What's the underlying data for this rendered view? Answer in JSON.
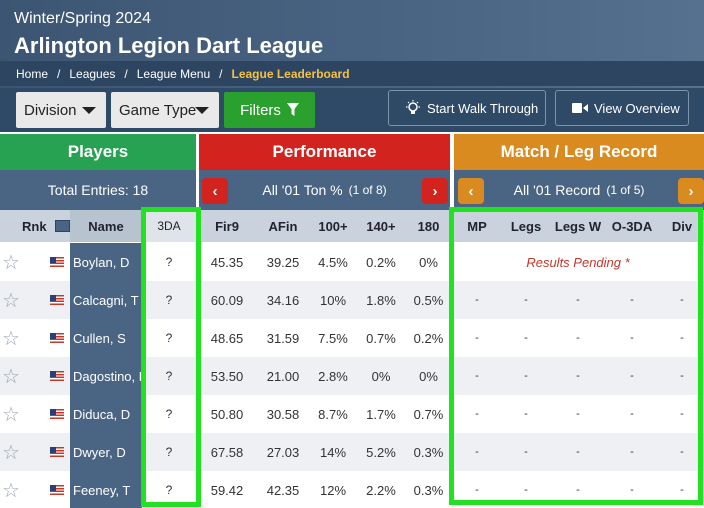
{
  "header": {
    "season": "Winter/Spring 2024",
    "league_name": "Arlington Legion Dart League",
    "breadcrumb": [
      "Home",
      "Leagues",
      "League Menu",
      "League Leaderboard"
    ]
  },
  "toolbar": {
    "division_label": "Division",
    "game_type_label": "Game Type",
    "filters_label": "Filters",
    "walkthrough_label": "Start Walk Through",
    "overview_label": "View Overview"
  },
  "sections": {
    "players": {
      "title": "Players",
      "total_entries": "Total Entries: 18"
    },
    "performance": {
      "title": "Performance",
      "selector": "All '01 Ton %",
      "selector_count": "(1 of 8)"
    },
    "record": {
      "title": "Match / Leg Record",
      "selector": "All '01 Record",
      "selector_count": "(1 of 5)"
    }
  },
  "columns": {
    "rank": "Rnk",
    "name": "Name",
    "three_da": "3DA",
    "fir9": "Fir9",
    "afin": "AFin",
    "c100": "100+",
    "c140": "140+",
    "c180": "180",
    "mp": "MP",
    "legs": "Legs",
    "legs_w": "Legs W",
    "o3da": "O-3DA",
    "div": "Div"
  },
  "results_pending": "Results Pending *",
  "players": [
    {
      "name": "Boylan, D",
      "three_da": "?",
      "fir9": "45.35",
      "afin": "39.25",
      "c100": "4.5%",
      "c140": "0.2%",
      "c180": "0%",
      "mp": "",
      "legs": "",
      "legs_w": "",
      "o3da": "",
      "div": ""
    },
    {
      "name": "Calcagni, T",
      "three_da": "?",
      "fir9": "60.09",
      "afin": "34.16",
      "c100": "10%",
      "c140": "1.8%",
      "c180": "0.5%",
      "mp": "-",
      "legs": "-",
      "legs_w": "-",
      "o3da": "-",
      "div": "-"
    },
    {
      "name": "Cullen, S",
      "three_da": "?",
      "fir9": "48.65",
      "afin": "31.59",
      "c100": "7.5%",
      "c140": "0.7%",
      "c180": "0.2%",
      "mp": "-",
      "legs": "-",
      "legs_w": "-",
      "o3da": "-",
      "div": "-"
    },
    {
      "name": "Dagostino, B",
      "three_da": "?",
      "fir9": "53.50",
      "afin": "21.00",
      "c100": "2.8%",
      "c140": "0%",
      "c180": "0%",
      "mp": "-",
      "legs": "-",
      "legs_w": "-",
      "o3da": "-",
      "div": "-"
    },
    {
      "name": "Diduca, D",
      "three_da": "?",
      "fir9": "50.80",
      "afin": "30.58",
      "c100": "8.7%",
      "c140": "1.7%",
      "c180": "0.7%",
      "mp": "-",
      "legs": "-",
      "legs_w": "-",
      "o3da": "-",
      "div": "-"
    },
    {
      "name": "Dwyer, D",
      "three_da": "?",
      "fir9": "67.58",
      "afin": "27.03",
      "c100": "14%",
      "c140": "5.2%",
      "c180": "0.3%",
      "mp": "-",
      "legs": "-",
      "legs_w": "-",
      "o3da": "-",
      "div": "-"
    },
    {
      "name": "Feeney, T",
      "three_da": "?",
      "fir9": "59.42",
      "afin": "42.35",
      "c100": "12%",
      "c140": "2.2%",
      "c180": "0.3%",
      "mp": "-",
      "legs": "-",
      "legs_w": "-",
      "o3da": "-",
      "div": "-"
    }
  ],
  "colors": {
    "players_header": "#27a152",
    "performance_header": "#d2231f",
    "record_header": "#d98b1f",
    "highlight": "#22e022"
  },
  "icons": {
    "caret": "chevron-down-icon",
    "filter": "funnel-icon",
    "walkthrough": "lightbulb-icon",
    "overview": "video-icon",
    "favorite": "star-icon",
    "flag": "us-flag-icon"
  }
}
